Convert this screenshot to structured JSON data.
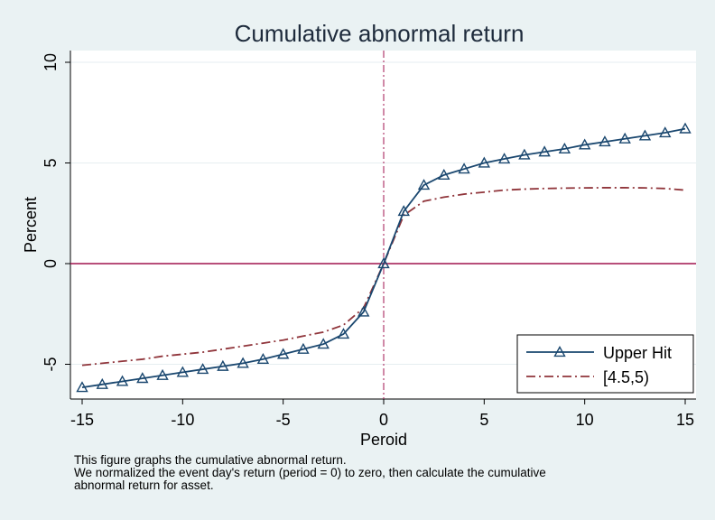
{
  "chart_data": {
    "type": "line",
    "title": "Cumulative abnormal return",
    "xlabel": "Peroid",
    "ylabel": "Percent",
    "xlim": [
      -15,
      15
    ],
    "ylim": [
      -6.6,
      10.5
    ],
    "xticks": [
      -15,
      -10,
      -5,
      0,
      5,
      10,
      15
    ],
    "yticks": [
      -5,
      0,
      5,
      10
    ],
    "grid": true,
    "legend_position": "bottom-right",
    "reference_lines": {
      "x": 0,
      "y": 0
    },
    "series": [
      {
        "name": "Upper Hit",
        "color": "#1a476f",
        "marker": "triangle",
        "x": [
          -15,
          -14,
          -13,
          -12,
          -11,
          -10,
          -9,
          -8,
          -7,
          -6,
          -5,
          -4,
          -3,
          -2,
          -1,
          0,
          1,
          2,
          3,
          4,
          5,
          6,
          7,
          8,
          9,
          10,
          11,
          12,
          13,
          14,
          15
        ],
        "y": [
          -6.15,
          -6.0,
          -5.85,
          -5.7,
          -5.55,
          -5.4,
          -5.25,
          -5.1,
          -4.95,
          -4.75,
          -4.5,
          -4.25,
          -4.0,
          -3.5,
          -2.4,
          0.0,
          2.6,
          3.9,
          4.4,
          4.7,
          5.0,
          5.2,
          5.4,
          5.55,
          5.7,
          5.9,
          6.05,
          6.2,
          6.35,
          6.5,
          6.7
        ]
      },
      {
        "name": "[4.5,5)",
        "color": "#90353b",
        "dash": "dash-dot",
        "x": [
          -15,
          -14,
          -13,
          -12,
          -11,
          -10,
          -9,
          -8,
          -7,
          -6,
          -5,
          -4,
          -3,
          -2,
          -1,
          0,
          1,
          2,
          3,
          4,
          5,
          6,
          7,
          8,
          9,
          10,
          11,
          12,
          13,
          14,
          15
        ],
        "y": [
          -5.05,
          -4.95,
          -4.85,
          -4.75,
          -4.6,
          -4.5,
          -4.4,
          -4.25,
          -4.1,
          -3.95,
          -3.8,
          -3.6,
          -3.4,
          -3.05,
          -2.2,
          0.0,
          2.4,
          3.1,
          3.3,
          3.45,
          3.55,
          3.65,
          3.7,
          3.73,
          3.75,
          3.76,
          3.77,
          3.77,
          3.76,
          3.73,
          3.65
        ]
      }
    ]
  },
  "notes": [
    "This figure graphs the cumulative abnormal return.",
    "We normalized the event day's return (period = 0) to zero, then calculate the cumulative",
    "abnormal return for  asset."
  ]
}
